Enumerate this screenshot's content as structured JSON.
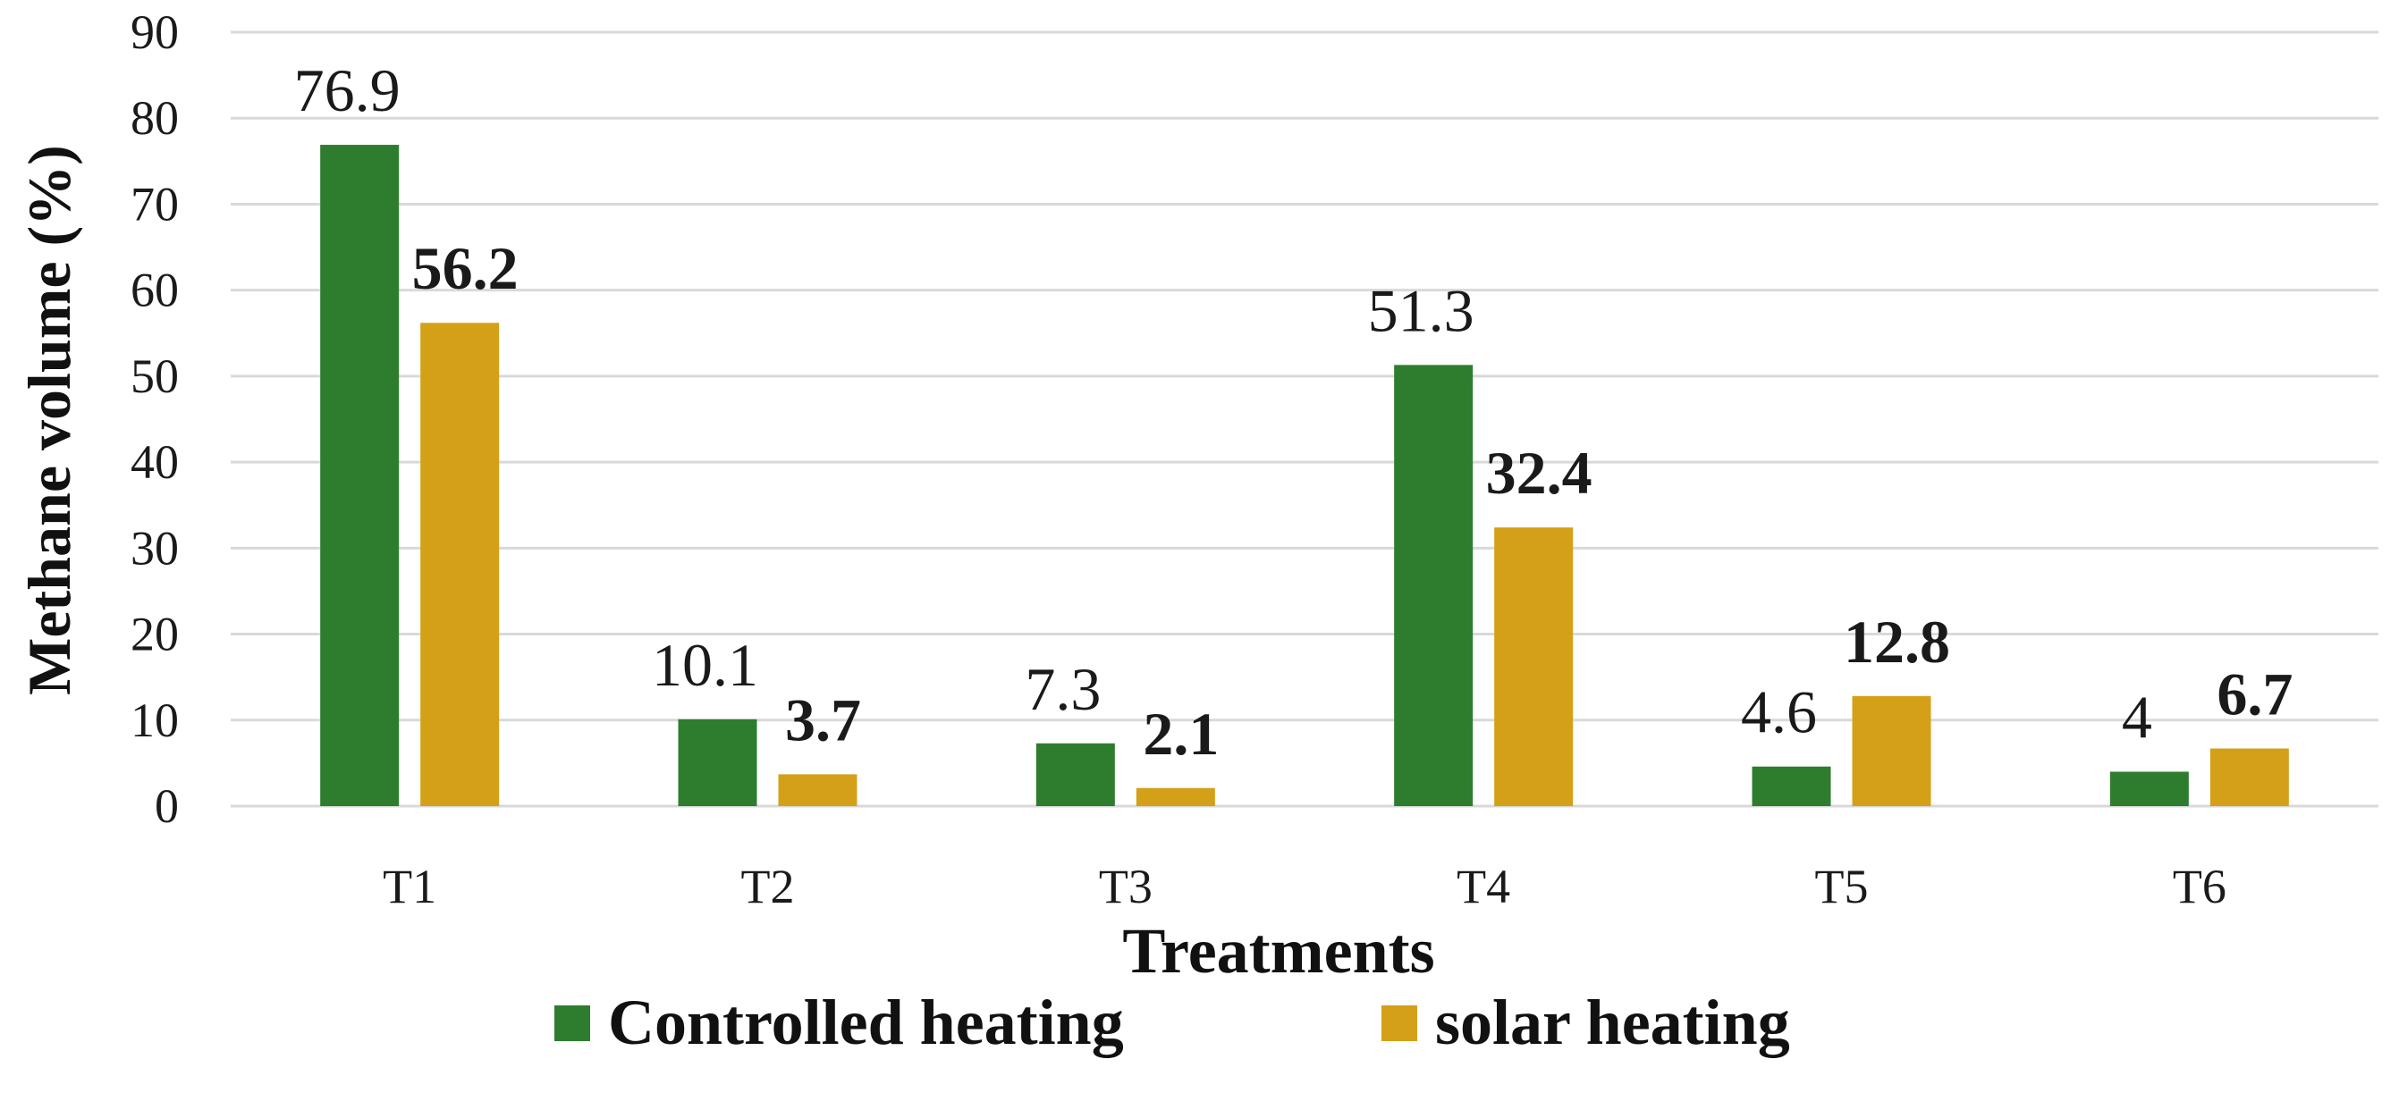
{
  "chart_data": {
    "type": "bar",
    "title": "",
    "xlabel": "Treatments",
    "ylabel": "Methane volume (%)",
    "ylim": [
      0,
      90
    ],
    "yticks": [
      0,
      10,
      20,
      30,
      40,
      50,
      60,
      70,
      80,
      90
    ],
    "categories": [
      "T1",
      "T2",
      "T3",
      "T4",
      "T5",
      "T6"
    ],
    "series": [
      {
        "name": "Controlled heating",
        "color": "#2e7d2e",
        "label_weight": "normal",
        "values": [
          76.9,
          10.1,
          7.3,
          51.3,
          4.6,
          4
        ],
        "labels": [
          "76.9",
          "10.1",
          "7.3",
          "51.3",
          "4.6",
          "4"
        ]
      },
      {
        "name": "solar heating",
        "color": "#d4a017",
        "label_weight": "bold",
        "values": [
          56.2,
          3.7,
          2.1,
          32.4,
          12.8,
          6.7
        ],
        "labels": [
          "56.2",
          "3.7",
          "2.1",
          "32.4",
          "12.8",
          "6.7"
        ]
      }
    ],
    "grid": true,
    "legend_position": "bottom"
  }
}
